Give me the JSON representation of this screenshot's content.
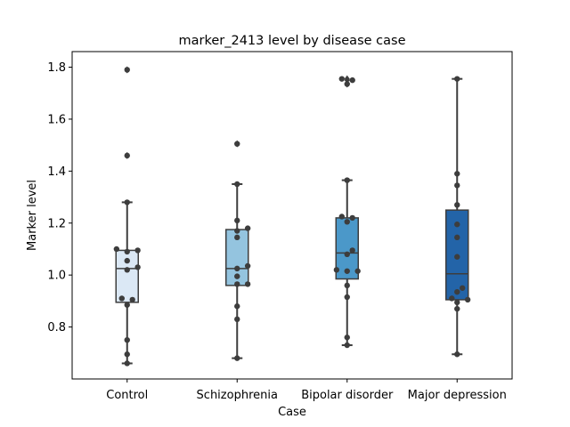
{
  "chart_data": {
    "type": "box",
    "title": "marker_2413 level by disease case",
    "xlabel": "Case",
    "ylabel": "Marker level",
    "ylim": [
      0.6,
      1.86
    ],
    "yticks": [
      0.8,
      1.0,
      1.2,
      1.4,
      1.6,
      1.8
    ],
    "grid": false,
    "categories": [
      "Control",
      "Schizophrenia",
      "Bipolar disorder",
      "Major depression"
    ],
    "colors": [
      "#dbe8f5",
      "#94c4df",
      "#4b98c9",
      "#2364a8"
    ],
    "boxes": [
      {
        "q1": 0.895,
        "median": 1.025,
        "q3": 1.095,
        "whisker_low": 0.66,
        "whisker_high": 1.28,
        "outliers": [
          1.46,
          1.79
        ]
      },
      {
        "q1": 0.96,
        "median": 1.025,
        "q3": 1.175,
        "whisker_low": 0.68,
        "whisker_high": 1.35,
        "outliers": [
          1.505
        ]
      },
      {
        "q1": 0.985,
        "median": 1.085,
        "q3": 1.22,
        "whisker_low": 0.73,
        "whisker_high": 1.365,
        "outliers": [
          1.735,
          1.75,
          1.755
        ]
      },
      {
        "q1": 0.905,
        "median": 1.005,
        "q3": 1.25,
        "whisker_low": 0.695,
        "whisker_high": 1.755,
        "outliers": []
      }
    ],
    "points": [
      [
        0.66,
        0.695,
        0.75,
        0.885,
        0.905,
        0.91,
        1.02,
        1.03,
        1.055,
        1.09,
        1.095,
        1.1,
        1.28,
        1.46,
        1.79
      ],
      [
        0.68,
        0.83,
        0.88,
        0.965,
        0.965,
        0.995,
        1.025,
        1.035,
        1.145,
        1.17,
        1.18,
        1.21,
        1.35,
        1.505
      ],
      [
        0.73,
        0.76,
        0.915,
        0.96,
        1.015,
        1.015,
        1.02,
        1.08,
        1.095,
        1.205,
        1.22,
        1.225,
        1.365,
        1.735,
        1.75,
        1.755
      ],
      [
        0.695,
        0.87,
        0.895,
        0.905,
        0.91,
        0.935,
        0.95,
        1.07,
        1.145,
        1.195,
        1.27,
        1.345,
        1.39,
        1.755
      ]
    ]
  }
}
